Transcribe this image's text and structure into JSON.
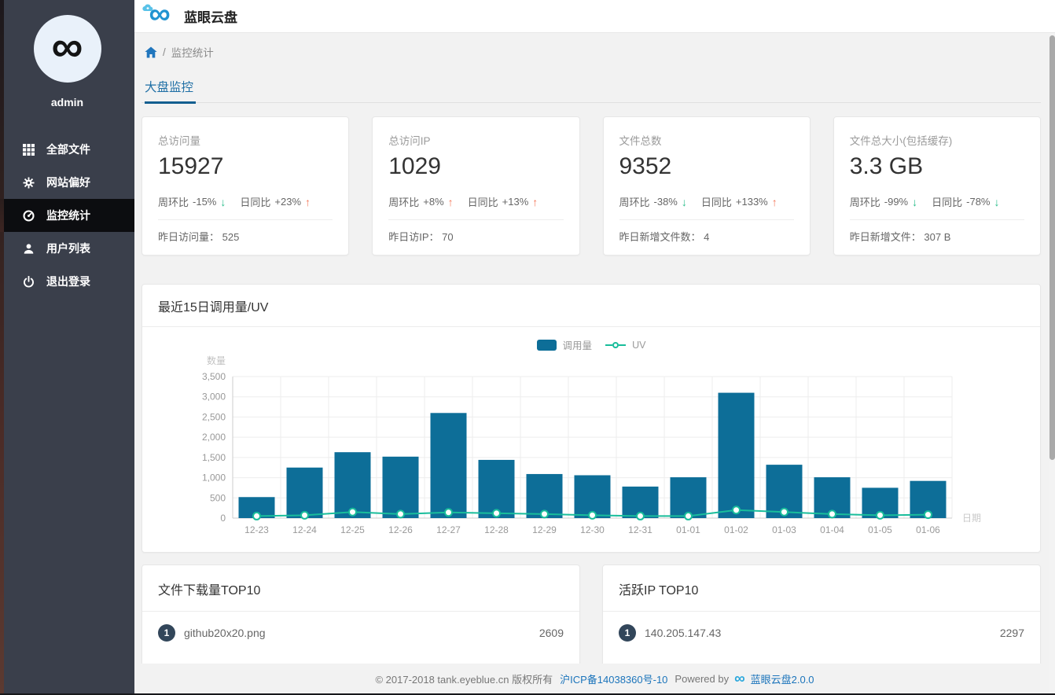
{
  "app": {
    "title": "蓝眼云盘"
  },
  "sidebar": {
    "username": "admin",
    "items": [
      {
        "label": "全部文件",
        "icon": "grid-icon",
        "active": false
      },
      {
        "label": "网站偏好",
        "icon": "gear-icon",
        "active": false
      },
      {
        "label": "监控统计",
        "icon": "dashboard-icon",
        "active": true
      },
      {
        "label": "用户列表",
        "icon": "user-icon",
        "active": false
      },
      {
        "label": "退出登录",
        "icon": "power-icon",
        "active": false
      }
    ]
  },
  "breadcrumb": {
    "separator": "/",
    "current": "监控统计"
  },
  "tabs": [
    {
      "label": "大盘监控",
      "active": true
    }
  ],
  "stat_cards": [
    {
      "label": "总访问量",
      "value": "15927",
      "week_label": "周环比",
      "week_delta": "-15%",
      "week_dir": "down",
      "day_label": "日同比",
      "day_delta": "+23%",
      "day_dir": "up",
      "bottom_label": "昨日访问量：",
      "bottom_value": "525"
    },
    {
      "label": "总访问IP",
      "value": "1029",
      "week_label": "周环比",
      "week_delta": "+8%",
      "week_dir": "up",
      "day_label": "日同比",
      "day_delta": "+13%",
      "day_dir": "up",
      "bottom_label": "昨日访IP：",
      "bottom_value": "70"
    },
    {
      "label": "文件总数",
      "value": "9352",
      "week_label": "周环比",
      "week_delta": "-38%",
      "week_dir": "down",
      "day_label": "日同比",
      "day_delta": "+133%",
      "day_dir": "up",
      "bottom_label": "昨日新增文件数：",
      "bottom_value": "4"
    },
    {
      "label": "文件总大小(包括缓存)",
      "value": "3.3 GB",
      "week_label": "周环比",
      "week_delta": "-99%",
      "week_dir": "down",
      "day_label": "日同比",
      "day_delta": "-78%",
      "day_dir": "down",
      "bottom_label": "昨日新增文件：",
      "bottom_value": "307 B"
    }
  ],
  "chart_card": {
    "title": "最近15日调用量/UV"
  },
  "chart_data": {
    "type": "bar",
    "title": "最近15日调用量/UV",
    "categories": [
      "12-23",
      "12-24",
      "12-25",
      "12-26",
      "12-27",
      "12-28",
      "12-29",
      "12-30",
      "12-31",
      "01-01",
      "01-02",
      "01-03",
      "01-04",
      "01-05",
      "01-06"
    ],
    "series": [
      {
        "name": "调用量",
        "type": "bar",
        "color": "#0d6e98",
        "values": [
          520,
          1250,
          1630,
          1520,
          2600,
          1440,
          1090,
          1060,
          780,
          1010,
          3100,
          1320,
          1010,
          750,
          920
        ]
      },
      {
        "name": "UV",
        "type": "line",
        "color": "#19bd9b",
        "values": [
          50,
          70,
          150,
          100,
          140,
          120,
          100,
          70,
          50,
          50,
          200,
          150,
          100,
          70,
          85
        ]
      }
    ],
    "xlabel": "日期",
    "ylabel": "数量",
    "ylim": [
      0,
      3500
    ],
    "ytick_step": 500,
    "grid": true,
    "legend_position": "top-center"
  },
  "top_lists": [
    {
      "title": "文件下载量TOP10",
      "rows": [
        {
          "rank": "1",
          "name": "github20x20.png",
          "value": "2609"
        }
      ]
    },
    {
      "title": "活跃IP TOP10",
      "rows": [
        {
          "rank": "1",
          "name": "140.205.147.43",
          "value": "2297"
        }
      ]
    }
  ],
  "footer": {
    "copyright": "© 2017-2018 tank.eyeblue.cn 版权所有",
    "icp": "沪ICP备14038360号-10",
    "powered_by": "Powered by",
    "product": "蓝眼云盘2.0.0"
  },
  "colors": {
    "sidebar_bg": "#3a3f4b",
    "active_item_bg": "#0c0d10",
    "page_bg": "#f2f2f2",
    "accent_blue": "#1f6fa5",
    "link_blue": "#1b74bb",
    "bar_blue": "#0d6e98",
    "line_teal": "#19bd9b",
    "trend_up_orange": "#f4785a",
    "trend_down_green": "#2abd8b",
    "badge_bg": "#32465a"
  }
}
